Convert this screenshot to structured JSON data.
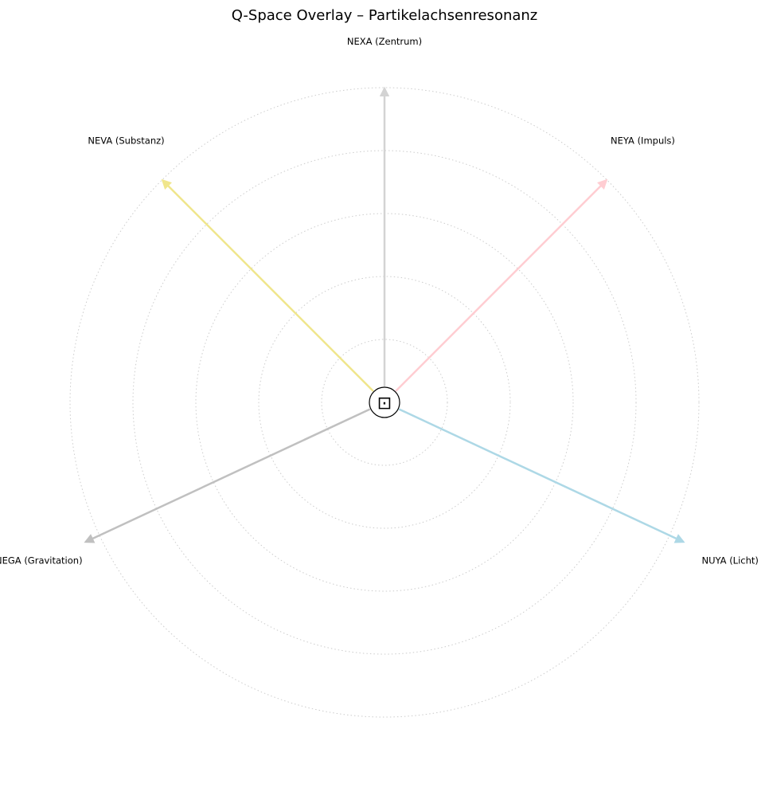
{
  "title": "Q-Space Overlay – Partikelachsenresonanz",
  "center_symbol": "⊡",
  "ring_count": 5,
  "axes": [
    {
      "id": "nexa",
      "label": "NEXA (Zentrum)",
      "angle_deg": 90,
      "length": 0.78,
      "color": "#d3d3d3"
    },
    {
      "id": "neya",
      "label": "NEYA (Impuls)",
      "angle_deg": 45,
      "length": 0.78,
      "color": "#ffcdd2"
    },
    {
      "id": "nuya",
      "label": "NUYA (Licht)",
      "angle_deg": -25,
      "length": 0.82,
      "color": "#add8e6"
    },
    {
      "id": "nega",
      "label": "NEGA (Gravitation)",
      "angle_deg": 205,
      "length": 0.82,
      "color": "#c0c0c0"
    },
    {
      "id": "neva",
      "label": "NEVA (Substanz)",
      "angle_deg": 135,
      "length": 0.78,
      "color": "#f0e68c"
    }
  ]
}
